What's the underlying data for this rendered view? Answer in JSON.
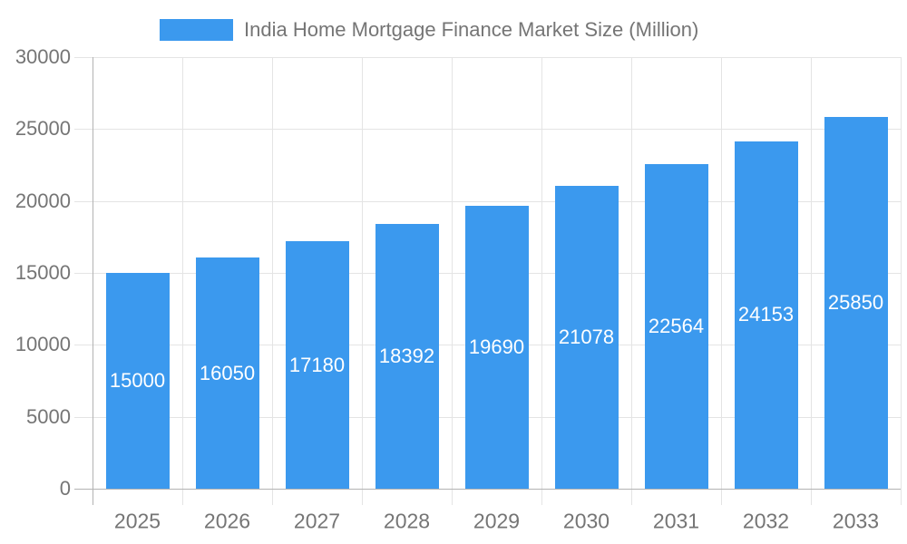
{
  "chart_data": {
    "type": "bar",
    "title": "India Home Mortgage Finance Market Size (Million)",
    "legend": {
      "label": "India Home Mortgage Finance Market Size (Million)",
      "position": "top"
    },
    "categories": [
      "2025",
      "2026",
      "2027",
      "2028",
      "2029",
      "2030",
      "2031",
      "2032",
      "2033"
    ],
    "values": [
      15000,
      16050,
      17180,
      18392,
      19690,
      21078,
      22564,
      24153,
      25850
    ],
    "xlabel": "",
    "ylabel": "",
    "ylim": [
      0,
      30000
    ],
    "yticks": [
      0,
      5000,
      10000,
      15000,
      20000,
      25000,
      30000
    ],
    "grid": true,
    "data_labels": "inside-center-white",
    "colors": {
      "bar": "#3b99ee",
      "grid": "#e4e4e4",
      "axis": "#b3b3b3",
      "tick_label": "#757575",
      "bar_label": "#ffffff",
      "background": "#ffffff"
    }
  }
}
